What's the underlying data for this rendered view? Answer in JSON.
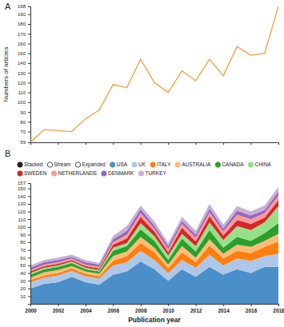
{
  "chart_data": [
    {
      "type": "line",
      "title": "A",
      "y_label": "Numbers of articles",
      "x": [
        2000,
        2001,
        2002,
        2003,
        2004,
        2005,
        2006,
        2007,
        2008,
        2009,
        2010,
        2011,
        2012,
        2013,
        2014,
        2015,
        2016,
        2017,
        2018
      ],
      "values": [
        59,
        72,
        71,
        70,
        83,
        92,
        118,
        115,
        144,
        120,
        110,
        132,
        122,
        144,
        127,
        157,
        148,
        150,
        198
      ],
      "color": "#f39c3c",
      "xlim": [
        2000,
        2018
      ],
      "xticks": [
        2000,
        2002,
        2004,
        2006,
        2008,
        2010,
        2012,
        2014,
        2016,
        2018
      ],
      "ylim": [
        59,
        198
      ],
      "yticks": [
        59,
        70,
        80,
        90,
        100,
        110,
        120,
        130,
        140,
        150,
        160,
        170,
        180,
        190,
        198
      ],
      "grid": false,
      "tick_labels": "y"
    },
    {
      "type": "area",
      "title": "B",
      "x_label": "Publication year",
      "stacked": true,
      "legend": "top",
      "annotations": [
        "Stacked",
        "Stream",
        "Expanded"
      ],
      "x": [
        2000,
        2001,
        2002,
        2003,
        2004,
        2005,
        2006,
        2007,
        2008,
        2009,
        2010,
        2011,
        2012,
        2013,
        2014,
        2015,
        2016,
        2017,
        2018
      ],
      "series": [
        {
          "name": "USA",
          "color": "#4a8fc9",
          "values": [
            20,
            26,
            28,
            35,
            28,
            25,
            38,
            42,
            55,
            45,
            30,
            45,
            35,
            48,
            38,
            45,
            40,
            48,
            48
          ]
        },
        {
          "name": "UK",
          "color": "#aec7e8",
          "values": [
            8,
            8,
            9,
            8,
            8,
            8,
            12,
            12,
            14,
            12,
            10,
            12,
            12,
            16,
            12,
            14,
            16,
            14,
            17
          ]
        },
        {
          "name": "ITALY",
          "color": "#ff7f0e",
          "values": [
            3,
            3,
            3,
            3,
            3,
            3,
            6,
            8,
            10,
            10,
            6,
            10,
            7,
            12,
            9,
            10,
            10,
            12,
            16
          ]
        },
        {
          "name": "AUSTRALIA",
          "color": "#ffbb78",
          "values": [
            3,
            4,
            4,
            3,
            3,
            3,
            6,
            6,
            8,
            6,
            5,
            8,
            6,
            8,
            6,
            8,
            8,
            8,
            10
          ]
        },
        {
          "name": "CANADA",
          "color": "#2ca02c",
          "values": [
            4,
            4,
            4,
            4,
            3,
            3,
            7,
            7,
            10,
            9,
            6,
            10,
            8,
            12,
            8,
            10,
            8,
            10,
            14
          ]
        },
        {
          "name": "CHINA",
          "color": "#98df8a",
          "values": [
            2,
            2,
            2,
            2,
            2,
            2,
            4,
            4,
            8,
            6,
            6,
            6,
            7,
            10,
            10,
            14,
            14,
            14,
            22
          ]
        },
        {
          "name": "SWEDEN",
          "color": "#d62728",
          "values": [
            2,
            2,
            2,
            2,
            2,
            2,
            4,
            6,
            8,
            6,
            4,
            8,
            6,
            8,
            6,
            8,
            8,
            6,
            8
          ]
        },
        {
          "name": "NETHERLANDS",
          "color": "#ff9896",
          "values": [
            2,
            2,
            2,
            2,
            2,
            2,
            3,
            5,
            5,
            4,
            4,
            5,
            5,
            5,
            5,
            7,
            6,
            6,
            6
          ]
        },
        {
          "name": "DENMARK",
          "color": "#9467bd",
          "values": [
            3,
            3,
            3,
            2,
            3,
            3,
            4,
            5,
            5,
            4,
            4,
            4,
            4,
            5,
            4,
            5,
            5,
            4,
            5
          ]
        },
        {
          "name": "TURKEY",
          "color": "#c5b0d5",
          "values": [
            3,
            3,
            3,
            3,
            3,
            2,
            4,
            6,
            5,
            5,
            4,
            5,
            5,
            6,
            5,
            6,
            5,
            6,
            6
          ]
        }
      ],
      "xlim": [
        2000,
        2018
      ],
      "xticks": [
        2000,
        2002,
        2004,
        2006,
        2008,
        2010,
        2012,
        2014,
        2016,
        2018
      ],
      "ylim": [
        0,
        157
      ],
      "yticks": [
        10,
        20,
        30,
        40,
        50,
        60,
        70,
        80,
        90,
        100,
        110,
        120,
        130,
        140,
        150,
        157
      ],
      "grid": false
    }
  ]
}
